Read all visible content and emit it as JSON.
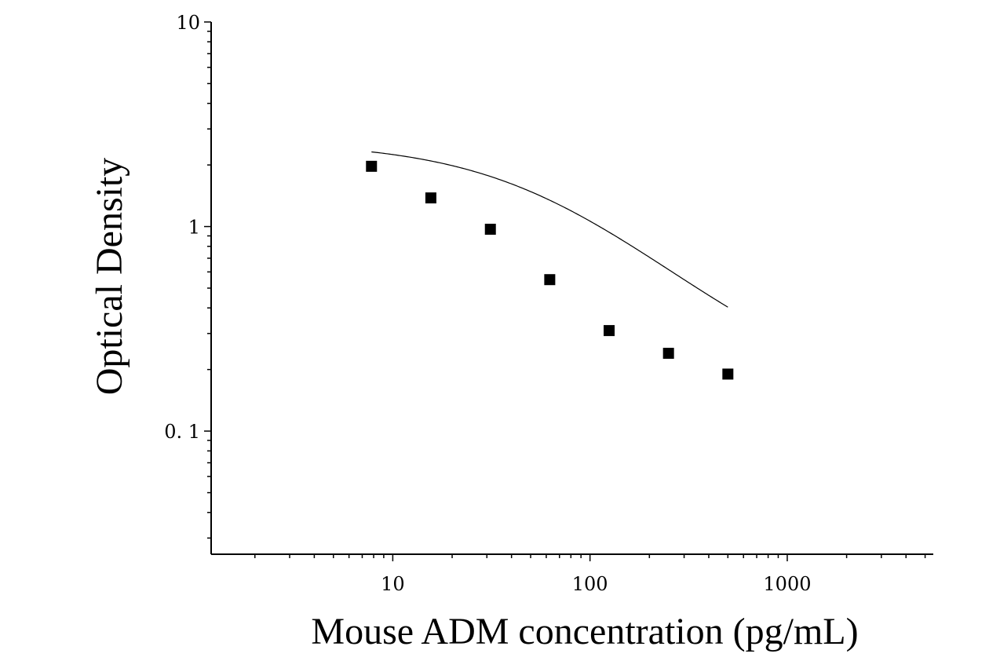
{
  "chart_data": {
    "type": "scatter",
    "title": "",
    "xlabel": "Mouse ADM concentration (pg/mL)",
    "ylabel": "Optical Density",
    "xscale": "log",
    "yscale": "log",
    "xlim": [
      1.2,
      5500
    ],
    "ylim": [
      0.025,
      10
    ],
    "x_ticks": [
      {
        "value": 10,
        "label": "10"
      },
      {
        "value": 100,
        "label": "100"
      },
      {
        "value": 1000,
        "label": "1000"
      }
    ],
    "y_ticks": [
      {
        "value": 0.1,
        "label": "0. 1"
      },
      {
        "value": 1,
        "label": "1"
      },
      {
        "value": 10,
        "label": "10"
      }
    ],
    "grid": false,
    "legend": "none",
    "series": [
      {
        "marker": "square",
        "color": "#000000",
        "points": [
          {
            "x": 7.8,
            "y": 1.97
          },
          {
            "x": 15.6,
            "y": 1.38
          },
          {
            "x": 31.25,
            "y": 0.97
          },
          {
            "x": 62.5,
            "y": 0.55
          },
          {
            "x": 125,
            "y": 0.31
          },
          {
            "x": 250,
            "y": 0.24
          },
          {
            "x": 500,
            "y": 0.19
          }
        ]
      }
    ],
    "fit_curve": {
      "type": "4PL",
      "A": 2.6,
      "D": 0.14,
      "C": 60,
      "B": 1.0,
      "x_range": [
        7.8,
        500
      ],
      "color": "#000000"
    }
  }
}
